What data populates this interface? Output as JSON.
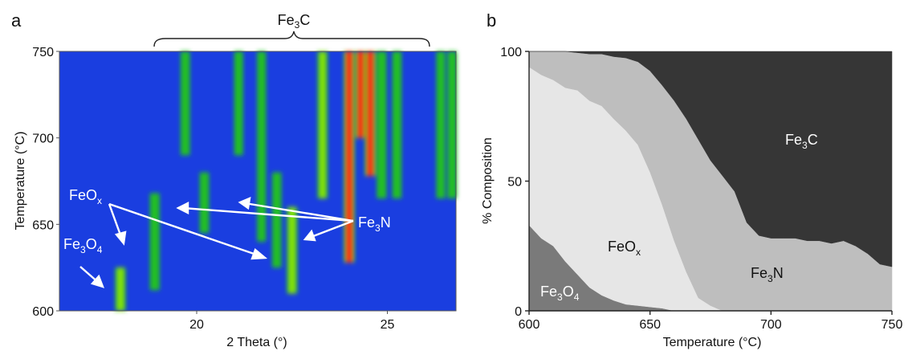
{
  "panels": {
    "a": {
      "letter": "a"
    },
    "b": {
      "letter": "b"
    }
  },
  "chart_data": [
    {
      "panel": "a",
      "type": "heatmap",
      "title": "",
      "xlabel": "2 Theta (°)",
      "ylabel": "Temperature (°C)",
      "xlim": [
        16.4,
        26.8
      ],
      "ylim": [
        600,
        750
      ],
      "x_ticks": [
        "20",
        "25"
      ],
      "y_ticks": [
        "600",
        "650",
        "700",
        "750"
      ],
      "colors": {
        "background": "#1a3ee0",
        "weak": "#22c020",
        "medium": "#7ee010",
        "strong": "#f03a12"
      },
      "peaks": [
        {
          "x": 18.0,
          "t0": 600,
          "t1": 625,
          "i": 0.9
        },
        {
          "x": 18.9,
          "t0": 612,
          "t1": 668,
          "i": 0.7
        },
        {
          "x": 19.7,
          "t0": 690,
          "t1": 750,
          "i": 0.6
        },
        {
          "x": 20.2,
          "t0": 645,
          "t1": 680,
          "i": 0.6
        },
        {
          "x": 21.1,
          "t0": 690,
          "t1": 750,
          "i": 0.5
        },
        {
          "x": 21.7,
          "t0": 640,
          "t1": 750,
          "i": 0.5
        },
        {
          "x": 22.1,
          "t0": 625,
          "t1": 680,
          "i": 0.6
        },
        {
          "x": 22.5,
          "t0": 610,
          "t1": 660,
          "i": 0.9
        },
        {
          "x": 23.3,
          "t0": 665,
          "t1": 750,
          "i": 0.8
        },
        {
          "x": 24.0,
          "t0": 628,
          "t1": 750,
          "i": 1.0
        },
        {
          "x": 24.3,
          "t0": 700,
          "t1": 750,
          "i": 1.0
        },
        {
          "x": 24.55,
          "t0": 678,
          "t1": 750,
          "i": 1.0
        },
        {
          "x": 24.85,
          "t0": 665,
          "t1": 750,
          "i": 0.7
        },
        {
          "x": 25.25,
          "t0": 665,
          "t1": 750,
          "i": 0.6
        },
        {
          "x": 26.4,
          "t0": 665,
          "t1": 750,
          "i": 0.5
        },
        {
          "x": 26.7,
          "t0": 665,
          "t1": 750,
          "i": 0.6
        }
      ],
      "annotations": {
        "bracket_label": {
          "base": "Fe",
          "sub": "3",
          "tail": "C"
        },
        "feox": {
          "base": "FeO",
          "sub": "x",
          "tail": ""
        },
        "fe3o4": {
          "base": "Fe",
          "sub": "3",
          "tail": "O",
          "sub2": "4"
        },
        "fe3n": {
          "base": "Fe",
          "sub": "3",
          "tail": "N"
        }
      }
    },
    {
      "panel": "b",
      "type": "area",
      "title": "",
      "xlabel": "Temperature (°C)",
      "ylabel": "% Composition",
      "xlim": [
        600,
        750
      ],
      "ylim": [
        0,
        100
      ],
      "x_ticks": [
        "600",
        "650",
        "700",
        "750"
      ],
      "y_ticks": [
        "0",
        "50",
        "100"
      ],
      "stacked": true,
      "x": [
        600,
        605,
        610,
        615,
        620,
        625,
        630,
        635,
        640,
        645,
        650,
        655,
        660,
        665,
        670,
        675,
        680,
        685,
        690,
        695,
        700,
        705,
        710,
        715,
        720,
        725,
        730,
        735,
        740,
        745,
        750
      ],
      "series": [
        {
          "name": "Fe3O4",
          "color": "#7a7a7a",
          "values": [
            33,
            28,
            25,
            19,
            14,
            9,
            6,
            4,
            2.5,
            2,
            1.5,
            1,
            0,
            0,
            0,
            0,
            0,
            0,
            0,
            0,
            0,
            0,
            0,
            0,
            0,
            0,
            0,
            0,
            0,
            0,
            0
          ]
        },
        {
          "name": "FeOx",
          "color": "#e6e6e6",
          "values": [
            61,
            63,
            64,
            67,
            71,
            72,
            73,
            70,
            67,
            62,
            52,
            40,
            27,
            15,
            5,
            2,
            0,
            0,
            0,
            0,
            0,
            0,
            0,
            0,
            0,
            0,
            0,
            0,
            0,
            0,
            0
          ]
        },
        {
          "name": "Fe3N",
          "color": "#bebebe",
          "values": [
            6,
            9,
            11,
            14,
            14.5,
            18,
            20,
            24,
            28,
            32,
            39,
            46,
            54,
            59,
            61,
            56,
            52,
            46,
            34,
            29,
            28,
            28,
            28,
            27,
            27,
            26,
            27,
            25,
            22,
            18,
            17
          ]
        },
        {
          "name": "Fe3C",
          "color": "#363636",
          "values": [
            0,
            0,
            0,
            0,
            0.5,
            1,
            1,
            2,
            2.5,
            4,
            7.5,
            13,
            19,
            26,
            34,
            42,
            48,
            54,
            66,
            71,
            72,
            72,
            72,
            73,
            73,
            74,
            73,
            75,
            78,
            82,
            83
          ]
        }
      ],
      "region_labels": {
        "fe3c": {
          "base": "Fe",
          "sub": "3",
          "tail": "C"
        },
        "feox": {
          "base": "FeO",
          "sub": "x",
          "tail": ""
        },
        "fe3n": {
          "base": "Fe",
          "sub": "3",
          "tail": "N"
        },
        "fe3o4": {
          "base": "Fe",
          "sub": "3",
          "tail": "O",
          "sub2": "4"
        }
      }
    }
  ]
}
